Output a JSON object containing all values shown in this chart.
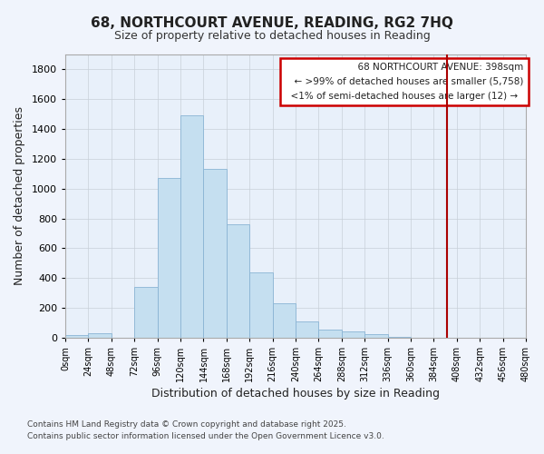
{
  "title": "68, NORTHCOURT AVENUE, READING, RG2 7HQ",
  "subtitle": "Size of property relative to detached houses in Reading",
  "xlabel": "Distribution of detached houses by size in Reading",
  "ylabel": "Number of detached properties",
  "bar_color": "#c5dff0",
  "bar_edge_color": "#8ab4d4",
  "background_color": "#e8f0fa",
  "fig_background_color": "#f0f4fc",
  "grid_color": "#c8cfd8",
  "property_line_x": 398,
  "property_line_color": "#aa0000",
  "bin_edges": [
    0,
    24,
    48,
    72,
    96,
    120,
    144,
    168,
    192,
    216,
    240,
    264,
    288,
    312,
    336,
    360,
    384,
    408,
    432,
    456,
    480
  ],
  "bin_counts": [
    15,
    30,
    0,
    340,
    1070,
    1490,
    1130,
    760,
    440,
    230,
    110,
    55,
    40,
    20,
    5,
    0,
    0,
    0,
    0,
    0
  ],
  "ylim": [
    0,
    1900
  ],
  "yticks": [
    0,
    200,
    400,
    600,
    800,
    1000,
    1200,
    1400,
    1600,
    1800
  ],
  "legend_title": "68 NORTHCOURT AVENUE: 398sqm",
  "legend_line1": "← >99% of detached houses are smaller (5,758)",
  "legend_line2": "<1% of semi-detached houses are larger (12) →",
  "legend_box_color": "#ffffff",
  "legend_box_edge": "#cc0000",
  "footnote1": "Contains HM Land Registry data © Crown copyright and database right 2025.",
  "footnote2": "Contains public sector information licensed under the Open Government Licence v3.0."
}
